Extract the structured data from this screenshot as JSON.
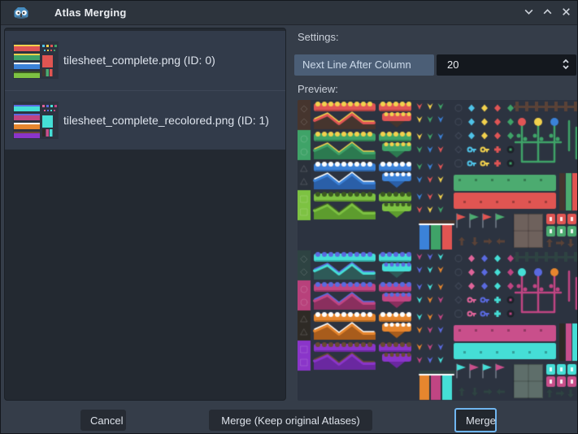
{
  "window": {
    "title": "Atlas Merging",
    "app_icon": "godot-icon",
    "controls": [
      {
        "name": "minimize",
        "icon": "chevron-down-icon"
      },
      {
        "name": "maximize",
        "icon": "chevron-up-icon"
      },
      {
        "name": "close",
        "icon": "close-icon"
      }
    ]
  },
  "atlas_list": {
    "items": [
      {
        "label": "tilesheet_complete.png (ID: 0)"
      },
      {
        "label": "tilesheet_complete_recolored.png (ID: 1)"
      }
    ]
  },
  "settings": {
    "heading": "Settings:",
    "next_line_after_column_label": "Next Line After Column",
    "next_line_after_column_value": "20"
  },
  "preview": {
    "heading": "Preview:"
  },
  "footer": {
    "cancel": "Cancel",
    "merge_keep": "Merge (Keep original Atlases)",
    "merge": "Merge"
  },
  "colors": {
    "titlebar": "#2d343d",
    "body": "#353d49",
    "panel": "#232931",
    "item": "#323b4a",
    "button": "#262b33",
    "focus_ring": "#70b6f0",
    "setting_label_bg": "#4b5e76",
    "spin_bg": "#14181e",
    "godot_blue": "#478cbf"
  },
  "preview_palettes": {
    "background": "#2c3340",
    "top": {
      "blocks": [
        "#46352e",
        "#3fa368",
        "#2a313b",
        "#7dc242"
      ],
      "groups": [
        {
          "body": "#e05555",
          "top": "#f2d14d",
          "base": "#46352e"
        },
        {
          "body": "#3fa368",
          "top": "#f2d14d",
          "base": "#2c7a50"
        },
        {
          "body": "#3b82d8",
          "top": "#ffffff",
          "base": "#2a5fa8"
        },
        {
          "body": "#7dc242",
          "top": "#3c5a22",
          "base": "#5d9c2e"
        }
      ],
      "decor": [
        "#e05555",
        "#f2d14d",
        "#3fa368",
        "#3b82d8"
      ],
      "gems": [
        "#4fc3e8",
        "#f2d14d",
        "#e05555",
        "#3fa368"
      ],
      "outline": "#3e4654",
      "fence": "#5a4237",
      "stem": "#3fa368",
      "blossoms": [
        "#e05555",
        "#f2d14d",
        "#3b82d8"
      ],
      "bigA": "#4cab70",
      "bigB": "#e05552",
      "cols": [
        "#46352e",
        "#4cab70",
        "#e05552"
      ],
      "plate": "#6e615c",
      "crateA": "#e05552",
      "crateB": "#4cab70",
      "arrows": "#5a4237",
      "falls": [
        "#3b82d8",
        "#3fa368",
        "#e05552"
      ],
      "fall_cap": "#46352e"
    },
    "bottom": {
      "blocks": [
        "#2e4342",
        "#b8417b",
        "#2e2a25",
        "#8a35c9"
      ],
      "groups": [
        {
          "body": "#45ded6",
          "top": "#5a6ae0",
          "base": "#2e5a58"
        },
        {
          "body": "#c04583",
          "top": "#5a6ae0",
          "base": "#8a2f5e"
        },
        {
          "body": "#e6862e",
          "top": "#ffffff",
          "base": "#a85c1c"
        },
        {
          "body": "#8a35c9",
          "top": "#6a4a32",
          "base": "#6a28a0"
        }
      ],
      "decor": [
        "#c04583",
        "#5a6ae0",
        "#45ded6",
        "#e6862e"
      ],
      "gems": [
        "#e0649a",
        "#5a6ae0",
        "#45ded6",
        "#c04583"
      ],
      "outline": "#3e4654",
      "fence": "#2e4342",
      "stem": "#c04583",
      "blossoms": [
        "#45ded6",
        "#5a6ae0",
        "#e6862e"
      ],
      "bigA": "#c94f8b",
      "bigB": "#45ded6",
      "cols": [
        "#2e2a25",
        "#c94f8b",
        "#45ded6"
      ],
      "plate": "#5e6e6a",
      "crateA": "#45ded6",
      "crateB": "#c94f8b",
      "arrows": "#2e4342",
      "falls": [
        "#e6862e",
        "#c04583",
        "#45ded6"
      ],
      "fall_cap": "#2e4342"
    }
  }
}
